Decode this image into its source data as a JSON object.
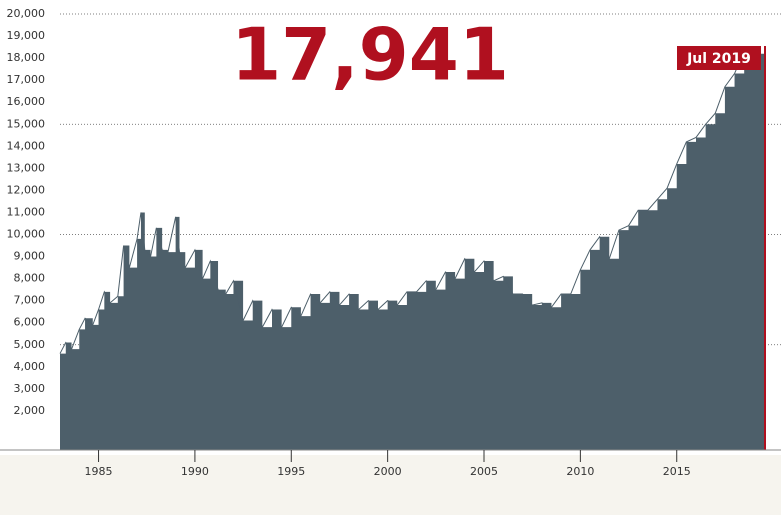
{
  "chart_data": {
    "type": "area",
    "annotation": {
      "label": "17,941",
      "date_label": "Jul 2019"
    },
    "x": [
      1983.0,
      1983.3,
      1983.6,
      1984.0,
      1984.3,
      1984.7,
      1985.0,
      1985.3,
      1985.6,
      1986.0,
      1986.3,
      1986.6,
      1987.0,
      1987.2,
      1987.4,
      1987.7,
      1988.0,
      1988.3,
      1988.6,
      1989.0,
      1989.2,
      1989.5,
      1990.0,
      1990.4,
      1990.8,
      1991.2,
      1991.6,
      1992.0,
      1992.5,
      1993.0,
      1993.5,
      1994.0,
      1994.5,
      1995.0,
      1995.5,
      1996.0,
      1996.5,
      1997.0,
      1997.5,
      1998.0,
      1998.5,
      1999.0,
      1999.5,
      2000.0,
      2000.5,
      2001.0,
      2001.5,
      2002.0,
      2002.5,
      2003.0,
      2003.5,
      2004.0,
      2004.5,
      2005.0,
      2005.5,
      2006.0,
      2006.5,
      2007.0,
      2007.5,
      2008.0,
      2008.5,
      2009.0,
      2009.5,
      2010.0,
      2010.5,
      2011.0,
      2011.5,
      2012.0,
      2012.5,
      2013.0,
      2013.5,
      2014.0,
      2014.5,
      2015.0,
      2015.5,
      2016.0,
      2016.5,
      2017.0,
      2017.5,
      2018.0,
      2018.5,
      2019.0,
      2019.58
    ],
    "values": [
      4600,
      5100,
      4800,
      5700,
      6200,
      5900,
      6600,
      7400,
      6900,
      7200,
      9500,
      8500,
      9800,
      11000,
      9300,
      9000,
      10300,
      9300,
      9200,
      10800,
      9200,
      8500,
      9300,
      8000,
      8800,
      7500,
      7300,
      7900,
      6100,
      7000,
      5800,
      6600,
      5800,
      6700,
      6300,
      7300,
      6900,
      7400,
      6800,
      7300,
      6600,
      7000,
      6600,
      7000,
      6800,
      7400,
      7400,
      7900,
      7500,
      8300,
      8000,
      8900,
      8300,
      8800,
      7900,
      8100,
      7300,
      7300,
      6800,
      6900,
      6700,
      7300,
      7300,
      8400,
      9300,
      9900,
      8900,
      10200,
      10400,
      11100,
      11100,
      11600,
      12100,
      13200,
      14200,
      14400,
      15000,
      15500,
      16700,
      17300,
      18300,
      18200,
      17941
    ],
    "color": "#4d5f6a",
    "highlight_color": "#b0101f",
    "xlim": [
      1983.0,
      2019.58
    ],
    "xticks": [
      1985,
      1990,
      1995,
      2000,
      2005,
      2010,
      2015
    ],
    "ylim": [
      0,
      20000
    ],
    "yticks": [
      {
        "value": 2000,
        "label": "2,000"
      },
      {
        "value": 3000,
        "label": "3,000"
      },
      {
        "value": 4000,
        "label": "4,000"
      },
      {
        "value": 5000,
        "label": "5,000"
      },
      {
        "value": 6000,
        "label": "6,000"
      },
      {
        "value": 7000,
        "label": "7,000"
      },
      {
        "value": 8000,
        "label": "8,000"
      },
      {
        "value": 9000,
        "label": "9,000"
      },
      {
        "value": 10000,
        "label": "10,000"
      },
      {
        "value": 11000,
        "label": "11,000"
      },
      {
        "value": 12000,
        "label": "12,000"
      },
      {
        "value": 13000,
        "label": "13,000"
      },
      {
        "value": 14000,
        "label": "14,000"
      },
      {
        "value": 15000,
        "label": "15,000"
      },
      {
        "value": 16000,
        "label": "16,000"
      },
      {
        "value": 17000,
        "label": "17,000"
      },
      {
        "value": 18000,
        "label": "18,000"
      },
      {
        "value": 19000,
        "label": "19,000"
      },
      {
        "value": 20000,
        "label": "20,000"
      }
    ],
    "ygrid": [
      5000,
      10000,
      15000,
      20000
    ]
  }
}
